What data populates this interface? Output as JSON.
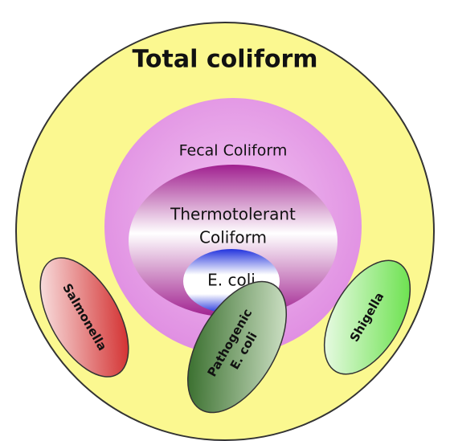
{
  "nodes": [
    {
      "label": "Total coliform"
    },
    {
      "label": "Fecal Coliform"
    },
    {
      "label": "Thermotolerant"
    },
    {
      "label": "Coliform"
    },
    {
      "label": "E. coli"
    },
    {
      "label": "Salmonella"
    },
    {
      "label": "Pathogenic"
    },
    {
      "label": "E. coli"
    },
    {
      "label": "Shigella"
    }
  ]
}
